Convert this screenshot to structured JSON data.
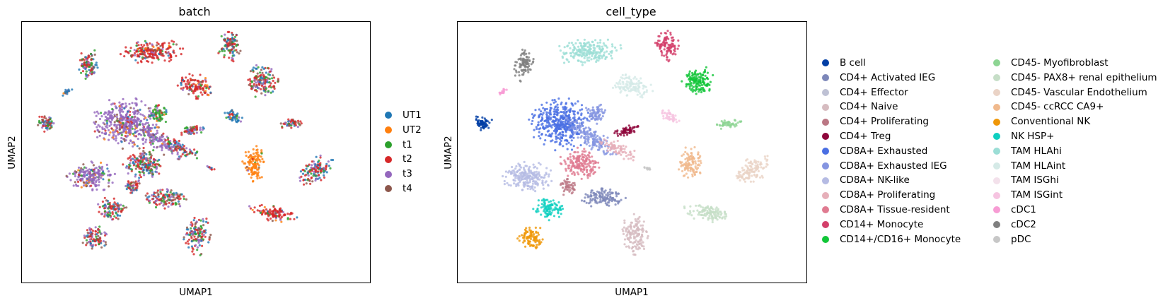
{
  "chart_data": [
    {
      "type": "scatter",
      "title": "batch",
      "xlabel": "UMAP1",
      "ylabel": "UMAP2",
      "grid": false,
      "legend_position": "right",
      "legend": [
        {
          "name": "UT1",
          "color": "#1f77b4"
        },
        {
          "name": "UT2",
          "color": "#ff7f0e"
        },
        {
          "name": "t1",
          "color": "#2ca02c"
        },
        {
          "name": "t2",
          "color": "#d62728"
        },
        {
          "name": "t3",
          "color": "#9467bd"
        },
        {
          "name": "t4",
          "color": "#8c564b"
        }
      ]
    },
    {
      "type": "scatter",
      "title": "cell_type",
      "xlabel": "UMAP1",
      "ylabel": "UMAP2",
      "grid": false,
      "legend_position": "right",
      "legend": [
        {
          "name": "B cell",
          "color": "#023fa5"
        },
        {
          "name": "CD4+ Activated IEG",
          "color": "#7d87b9"
        },
        {
          "name": "CD4+ Effector",
          "color": "#bec1d4"
        },
        {
          "name": "CD4+ Naive",
          "color": "#d6bcc0"
        },
        {
          "name": "CD4+ Proliferating",
          "color": "#bb7784"
        },
        {
          "name": "CD4+ Treg",
          "color": "#8e063b"
        },
        {
          "name": "CD8A+ Exhausted",
          "color": "#4a6fe3"
        },
        {
          "name": "CD8A+ Exhausted IEG",
          "color": "#8595e1"
        },
        {
          "name": "CD8A+ NK-like",
          "color": "#b5bbe3"
        },
        {
          "name": "CD8A+ Proliferating",
          "color": "#e6afb9"
        },
        {
          "name": "CD8A+ Tissue-resident",
          "color": "#e07b91"
        },
        {
          "name": "CD14+ Monocyte",
          "color": "#d33f6a"
        },
        {
          "name": "CD14+/CD16+ Monocyte",
          "color": "#11c638"
        },
        {
          "name": "CD45- Myofibroblast",
          "color": "#8dd593"
        },
        {
          "name": "CD45- PAX8+ renal epithelium",
          "color": "#c6dec7"
        },
        {
          "name": "CD45- Vascular Endothelium",
          "color": "#ead3c6"
        },
        {
          "name": "CD45- ccRCC CA9+",
          "color": "#f0b98d"
        },
        {
          "name": "Conventional NK",
          "color": "#ef9708"
        },
        {
          "name": "NK HSP+",
          "color": "#0fcfc0"
        },
        {
          "name": "TAM HLAhi",
          "color": "#9cded6"
        },
        {
          "name": "TAM HLAint",
          "color": "#d5eae7"
        },
        {
          "name": "TAM ISGhi",
          "color": "#f3e1eb"
        },
        {
          "name": "TAM ISGint",
          "color": "#f6c4e1"
        },
        {
          "name": "cDC1",
          "color": "#f79cd4"
        },
        {
          "name": "cDC2",
          "color": "#7f7f7f"
        },
        {
          "name": "pDC",
          "color": "#c7c7c7"
        }
      ]
    }
  ]
}
